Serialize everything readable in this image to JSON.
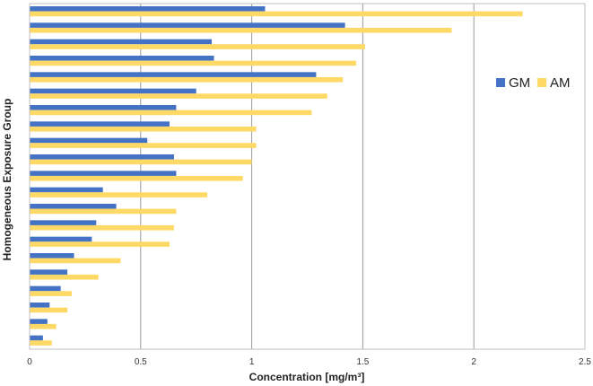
{
  "chart_data": {
    "type": "bar",
    "orientation": "horizontal",
    "xlabel": "Concentration  [mg/m³]",
    "ylabel": "Homogeneous  Exposure  Group",
    "xlim": [
      0,
      2.5
    ],
    "xticks": [
      "0",
      "0.5",
      "1",
      "1.5",
      "2",
      "2.5"
    ],
    "xtick_values": [
      0,
      0.5,
      1,
      1.5,
      2,
      2.5
    ],
    "grid": "vertical",
    "legend_position": "right",
    "series": [
      {
        "name": "GM",
        "color": "#4472C4",
        "values": [
          1.06,
          1.42,
          0.82,
          0.83,
          1.29,
          0.75,
          0.66,
          0.63,
          0.53,
          0.65,
          0.66,
          0.33,
          0.39,
          0.3,
          0.28,
          0.2,
          0.17,
          0.14,
          0.09,
          0.08,
          0.06
        ]
      },
      {
        "name": "AM",
        "color": "#FFD966",
        "values": [
          2.22,
          1.9,
          1.51,
          1.47,
          1.41,
          1.34,
          1.27,
          1.02,
          1.02,
          1.0,
          0.96,
          0.8,
          0.66,
          0.65,
          0.63,
          0.41,
          0.31,
          0.19,
          0.17,
          0.12,
          0.1
        ]
      }
    ]
  }
}
